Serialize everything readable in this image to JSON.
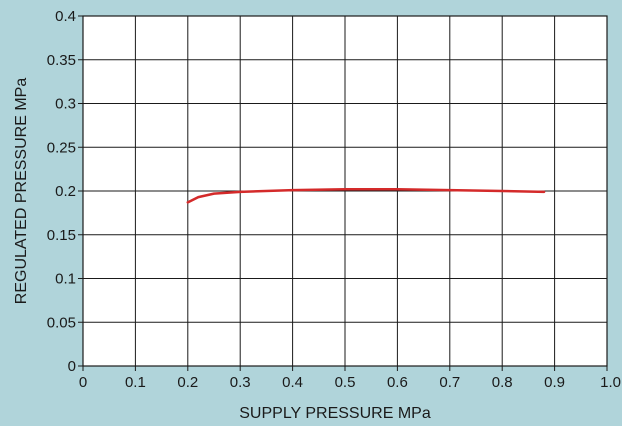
{
  "chart_data": {
    "type": "line",
    "title": "",
    "xlabel": "SUPPLY PRESSURE  MPa",
    "ylabel": "REGULATED PRESSURE  MPa",
    "xlim": [
      0,
      1.0
    ],
    "ylim": [
      0,
      0.4
    ],
    "x_ticks": [
      "0",
      "0.1",
      "0.2",
      "0.3",
      "0.4",
      "0.5",
      "0.6",
      "0.7",
      "0.8",
      "0.9",
      "1.0"
    ],
    "y_ticks": [
      "0",
      "0.05",
      "0.1",
      "0.15",
      "0.2",
      "0.25",
      "0.3",
      "0.35",
      "0.4"
    ],
    "grid": true,
    "series": [
      {
        "color": "#d42a2a",
        "x": [
          0.2,
          0.22,
          0.25,
          0.3,
          0.4,
          0.5,
          0.6,
          0.7,
          0.8,
          0.88
        ],
        "y": [
          0.187,
          0.193,
          0.197,
          0.199,
          0.201,
          0.202,
          0.202,
          0.201,
          0.2,
          0.199
        ]
      }
    ],
    "colors": {
      "background": "#b0d4da",
      "plot": "#ffffff",
      "grid": "#1a1a1a"
    }
  }
}
